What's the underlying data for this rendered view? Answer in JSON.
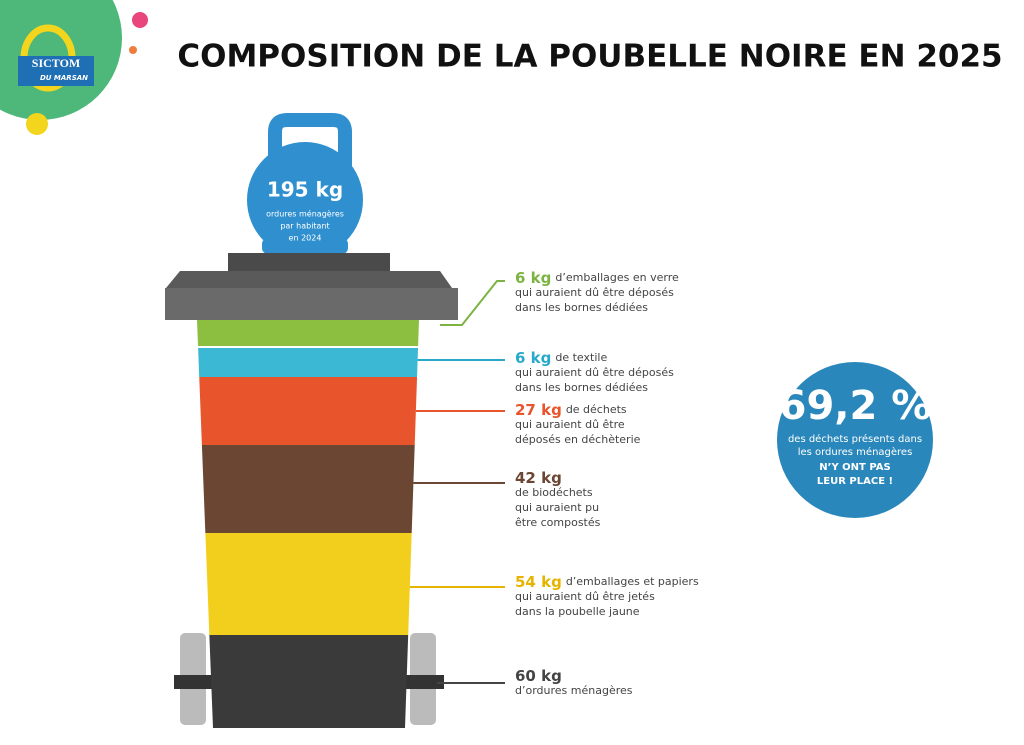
{
  "header": {
    "logo_line1": "SICTOM",
    "logo_line2": "DU MARSAN",
    "title": "COMPOSITION DE LA POUBELLE NOIRE EN 2025"
  },
  "weight": {
    "amount": "195 kg",
    "caption": [
      "ordures ménagères",
      "par habitant",
      "en 2024"
    ]
  },
  "layers": [
    {
      "amount": "6 kg",
      "inline": "d’emballages en verre",
      "lines": [
        "qui auraient dû être déposés",
        "dans les bornes dédiées"
      ]
    },
    {
      "amount": "6 kg",
      "inline": "de textile",
      "lines": [
        "qui auraient dû être déposés",
        "dans les bornes dédiées"
      ]
    },
    {
      "amount": "27 kg",
      "inline": "de déchets",
      "lines": [
        "qui auraient dû être",
        "déposés en déchèterie"
      ]
    },
    {
      "amount": "42 kg",
      "lines": [
        "de biodéchets",
        "qui auraient pu",
        "être compostés"
      ]
    },
    {
      "amount": "54 kg",
      "inline": "d’emballages et papiers",
      "lines": [
        "qui auraient dû être jetés",
        "dans la poubelle jaune"
      ]
    },
    {
      "amount": "60 kg",
      "lines": [
        "d’ordures ménagères"
      ]
    }
  ],
  "highlight": {
    "value": "69,2 %",
    "text": [
      "des déchets présents dans",
      "les ordures ménagères"
    ],
    "emphasis": [
      "N’Y ONT PAS",
      "LEUR PLACE !"
    ]
  }
}
